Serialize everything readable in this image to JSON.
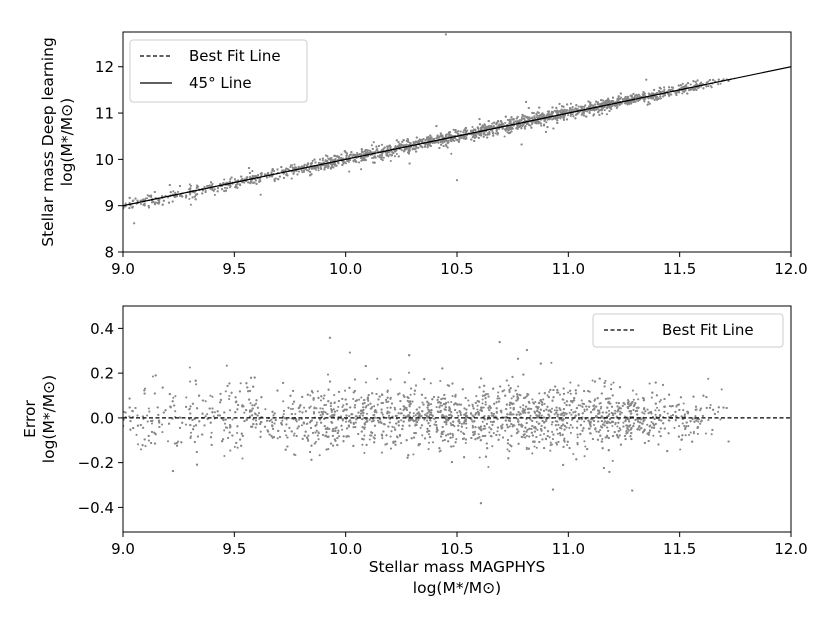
{
  "chart_data": [
    {
      "type": "scatter",
      "panel": "top",
      "title": "",
      "xlabel": "",
      "ylabel_line1": "Stellar mass Deep learning",
      "ylabel_line2": "log(M*/M⊙)",
      "xlim": [
        9.0,
        12.0
      ],
      "ylim": [
        8,
        12.75
      ],
      "xticks": [
        "9.0",
        "9.5",
        "10.0",
        "10.5",
        "11.0",
        "11.5",
        "12.0"
      ],
      "yticks": [
        "8",
        "9",
        "10",
        "11",
        "12"
      ],
      "legend": {
        "placement": "top-left",
        "entries": [
          "Best Fit Line",
          "45° Line"
        ]
      },
      "grid": false,
      "scatter_color": "#888888",
      "scatter_x_range": [
        9.0,
        11.75
      ],
      "scatter_sigma": 0.07,
      "outliers": [
        {
          "x": 10.45,
          "y": 12.7
        },
        {
          "x": 10.5,
          "y": 9.55
        },
        {
          "x": 11.35,
          "y": 11.72
        },
        {
          "x": 9.05,
          "y": 8.62
        }
      ],
      "series": [
        {
          "name": "Best Fit Line",
          "style": "dashed",
          "x": [
            9.0,
            11.75
          ],
          "y": [
            9.0,
            11.75
          ]
        },
        {
          "name": "45° Line",
          "style": "solid",
          "x": [
            9.0,
            12.0
          ],
          "y": [
            9.0,
            12.0
          ]
        }
      ]
    },
    {
      "type": "scatter",
      "panel": "bottom",
      "title": "",
      "xlabel_line1": "Stellar mass MAGPHYS",
      "xlabel_line2": "log(M*/M⊙)",
      "ylabel_line1": "Error",
      "ylabel_line2": "log(M*/M⊙)",
      "xlim": [
        9.0,
        12.0
      ],
      "ylim": [
        -0.51,
        0.5
      ],
      "xticks": [
        "9.0",
        "9.5",
        "10.0",
        "10.5",
        "11.0",
        "11.5",
        "12.0"
      ],
      "yticks": [
        "−0.4",
        "−0.2",
        "0.0",
        "0.2",
        "0.4"
      ],
      "legend": {
        "placement": "top-right",
        "entries": [
          "Best Fit Line"
        ]
      },
      "grid": false,
      "scatter_color": "#888888",
      "scatter_x_range": [
        9.0,
        11.75
      ],
      "scatter_sigma": 0.07,
      "series": [
        {
          "name": "Best Fit Line",
          "style": "dashed",
          "x": [
            9.0,
            12.0
          ],
          "y": [
            0.0,
            0.0
          ]
        }
      ]
    }
  ]
}
